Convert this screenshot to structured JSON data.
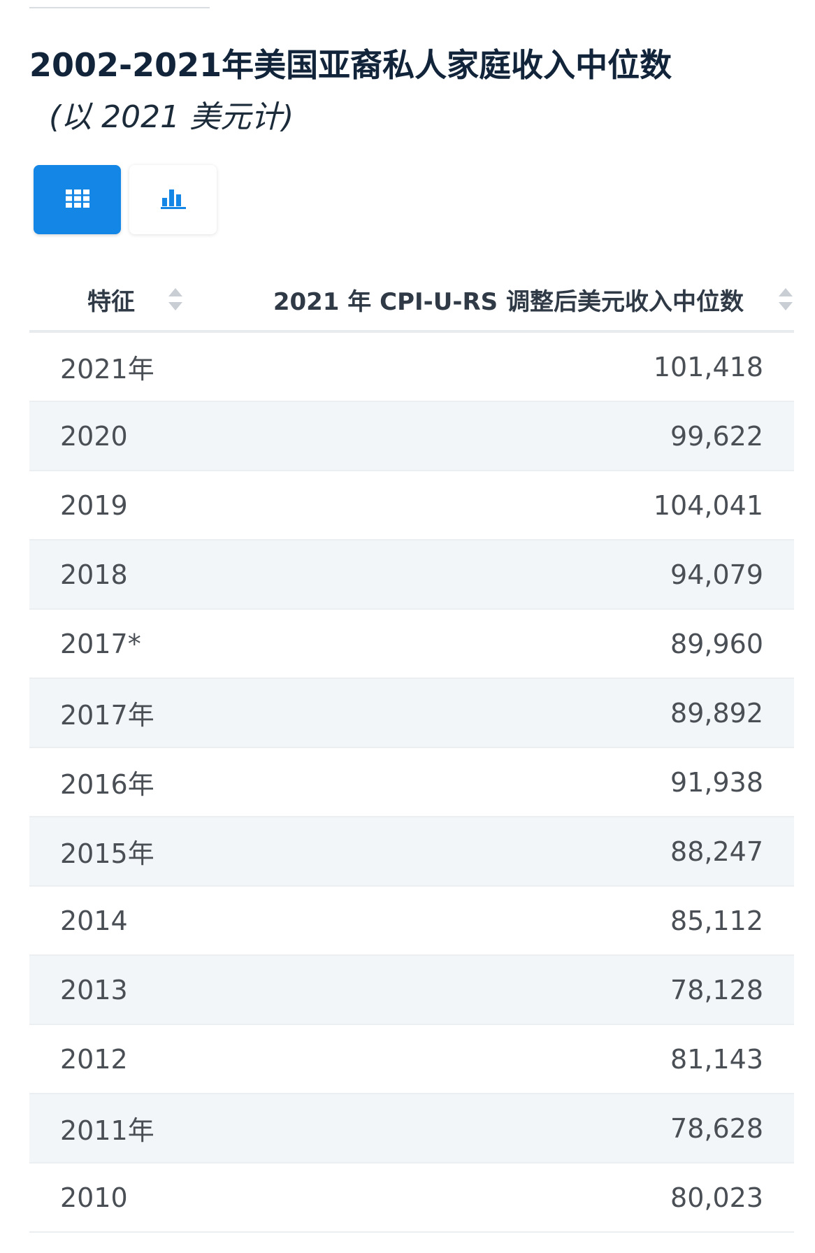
{
  "title": "2002-2021年美国亚裔私人家庭收入中位数",
  "subtitle": "(以 2021 美元计)",
  "view_toggle": {
    "table_icon": "grid-table-icon",
    "chart_icon": "bar-chart-icon",
    "active": "table",
    "accent_color": "#1486e5"
  },
  "table": {
    "headers": [
      "特征",
      "2021 年 CPI-U-RS 调整后美元收入中位数"
    ],
    "rows": [
      {
        "feature": "2021年",
        "value": "101,418"
      },
      {
        "feature": "2020",
        "value": "99,622"
      },
      {
        "feature": "2019",
        "value": "104,041"
      },
      {
        "feature": "2018",
        "value": "94,079"
      },
      {
        "feature": "2017*",
        "value": "89,960"
      },
      {
        "feature": "2017年",
        "value": "89,892"
      },
      {
        "feature": "2016年",
        "value": "91,938"
      },
      {
        "feature": "2015年",
        "value": "88,247"
      },
      {
        "feature": "2014",
        "value": "85,112"
      },
      {
        "feature": "2013",
        "value": "78,128"
      },
      {
        "feature": "2012",
        "value": "81,143"
      },
      {
        "feature": "2011年",
        "value": "78,628"
      },
      {
        "feature": "2010",
        "value": "80,023"
      }
    ]
  }
}
